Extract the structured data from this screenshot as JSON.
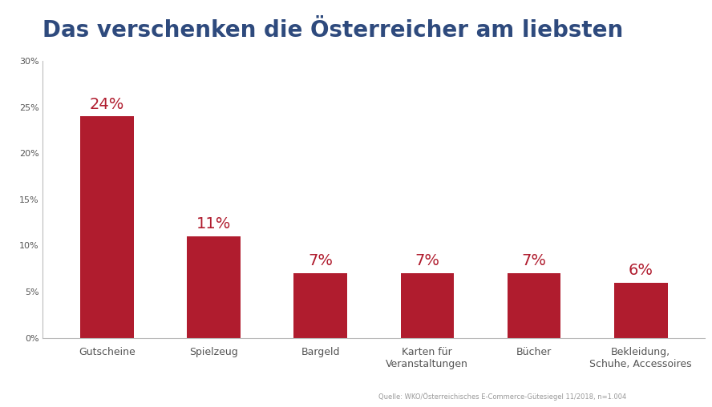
{
  "chart_data": {
    "type": "bar",
    "title": "Das verschenken die Österreicher am liebsten",
    "categories": [
      "Gutscheine",
      "Spielzeug",
      "Bargeld",
      "Karten für\nVeranstaltungen",
      "Bücher",
      "Bekleidung,\nSchuhe, Accessoires"
    ],
    "values": [
      24,
      11,
      7,
      7,
      7,
      6
    ],
    "value_labels": [
      "24%",
      "11%",
      "7%",
      "7%",
      "7%",
      "6%"
    ],
    "data_labels": true,
    "color": "#b01c2e",
    "ylim": [
      0,
      30
    ],
    "yticks": [
      {
        "value": 0,
        "label": "0%"
      },
      {
        "value": 5,
        "label": "5%"
      },
      {
        "value": 10,
        "label": "10%"
      },
      {
        "value": 15,
        "label": "15%"
      },
      {
        "value": 20,
        "label": "20%"
      },
      {
        "value": 25,
        "label": "25%"
      },
      {
        "value": 30,
        "label": "30%"
      }
    ],
    "grid": false,
    "source": "Quelle: WKO/Österreichisches E-Commerce-Gütesiegel 11/2018, n=1.004"
  }
}
